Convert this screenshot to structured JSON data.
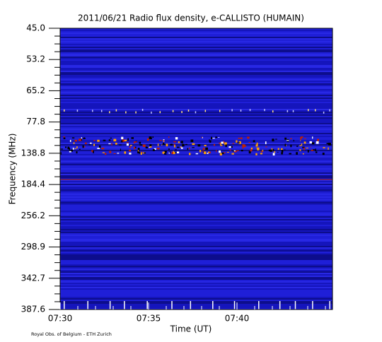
{
  "chart_data": {
    "type": "spectrogram",
    "title": "2011/06/21  Radio flux density, e-CALLISTO (HUMAIN)",
    "x_label": "Time (UT)",
    "y_label": "Frequency (MHz)",
    "xticks": [
      "07:30",
      "07:35",
      "07:40"
    ],
    "yticks": [
      {
        "value": 45,
        "label": "45.0"
      },
      53.2,
      65.2,
      77.8,
      138.8,
      184.4,
      256.2,
      298.9,
      342.7,
      387.6
    ],
    "footer": "Royal Obs. of Belgium - ETH Zurich"
  }
}
